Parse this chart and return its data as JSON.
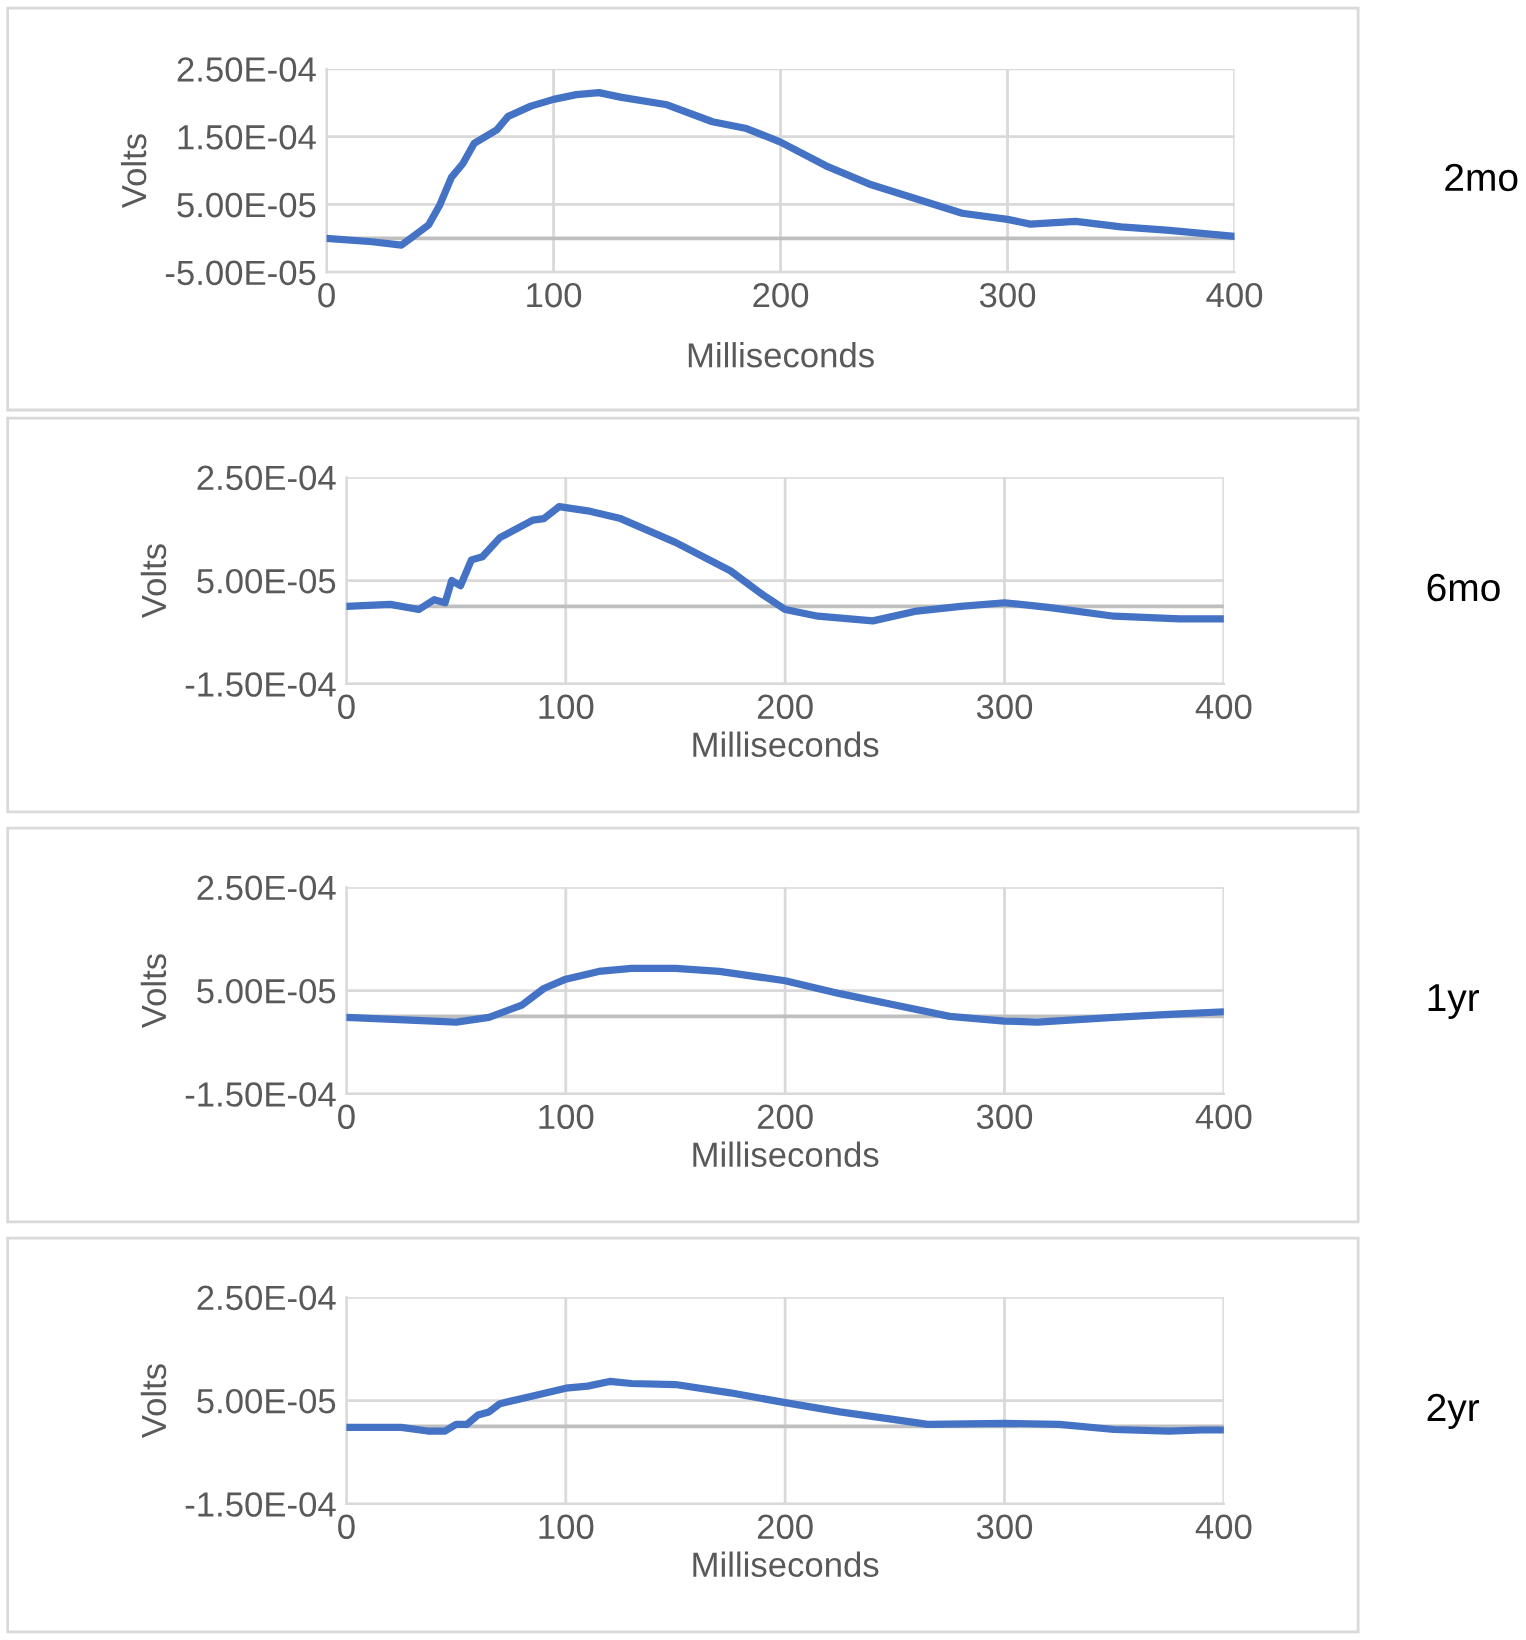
{
  "chart_data": [
    {
      "type": "line",
      "xlabel": "Milliseconds",
      "ylabel": "Volts",
      "annotations": [
        "2mo"
      ],
      "grid": true,
      "legend": false,
      "marker": "none",
      "line_style": "solid",
      "xlim": [
        0,
        400
      ],
      "xticks": [
        0,
        100,
        200,
        300,
        400
      ],
      "ylim": [
        -5e-05,
        0.00025
      ],
      "yticks": [
        {
          "value": -5e-05,
          "label": "-5.00E-05"
        },
        {
          "value": 5e-05,
          "label": "5.00E-05"
        },
        {
          "value": 0.00015,
          "label": "1.50E-04"
        },
        {
          "value": 0.00025,
          "label": "2.50E-04"
        }
      ],
      "ref_lines": [
        {
          "axis": "y",
          "value": 0,
          "color": "#bfbfbf"
        }
      ],
      "series": [
        {
          "color": "#4472c4",
          "x": [
            0,
            20,
            33,
            45,
            50,
            55,
            60,
            65,
            75,
            80,
            90,
            100,
            110,
            120,
            130,
            150,
            170,
            185,
            200,
            220,
            240,
            260,
            280,
            300,
            310,
            330,
            350,
            370,
            400
          ],
          "values": [
            0,
            -5e-06,
            -1e-05,
            2e-05,
            5e-05,
            9e-05,
            0.00011,
            0.00014,
            0.00016,
            0.00018,
            0.000195,
            0.000205,
            0.000212,
            0.000215,
            0.000208,
            0.000197,
            0.000172,
            0.000162,
            0.000142,
            0.000107,
            7.9e-05,
            5.8e-05,
            3.7e-05,
            2.8e-05,
            2.1e-05,
            2.5e-05,
            1.7e-05,
            1.2e-05,
            3e-06
          ]
        }
      ]
    },
    {
      "type": "line",
      "xlabel": "Milliseconds",
      "ylabel": "Volts",
      "annotations": [
        "6mo"
      ],
      "grid": true,
      "legend": false,
      "marker": "none",
      "line_style": "solid",
      "xlim": [
        0,
        400
      ],
      "xticks": [
        0,
        100,
        200,
        300,
        400
      ],
      "ylim": [
        -0.00015,
        0.00025
      ],
      "yticks": [
        {
          "value": -0.00015,
          "label": "-1.50E-04"
        },
        {
          "value": 5e-05,
          "label": "5.00E-05"
        },
        {
          "value": 0.00025,
          "label": "2.50E-04"
        }
      ],
      "ref_lines": [
        {
          "axis": "y",
          "value": 0,
          "color": "#bfbfbf"
        }
      ],
      "series": [
        {
          "color": "#4472c4",
          "x": [
            0,
            20,
            33,
            40,
            45,
            48,
            52,
            57,
            62,
            70,
            85,
            90,
            97,
            110,
            125,
            150,
            175,
            190,
            200,
            215,
            240,
            260,
            280,
            300,
            320,
            350,
            380,
            400
          ],
          "values": [
            0,
            4e-06,
            -6e-06,
            1.3e-05,
            7e-06,
            5e-05,
            4e-05,
            9e-05,
            9.6e-05,
            0.000133,
            0.000167,
            0.00017,
            0.000193,
            0.000185,
            0.00017,
            0.000124,
            6.9e-05,
            2.2e-05,
            -6e-06,
            -1.9e-05,
            -2.8e-05,
            -9e-06,
            0,
            7e-06,
            -2e-06,
            -1.9e-05,
            -2.4e-05,
            -2.4e-05
          ]
        }
      ]
    },
    {
      "type": "line",
      "xlabel": "Milliseconds",
      "ylabel": "Volts",
      "annotations": [
        "1yr"
      ],
      "grid": true,
      "legend": false,
      "marker": "none",
      "line_style": "solid",
      "xlim": [
        0,
        400
      ],
      "xticks": [
        0,
        100,
        200,
        300,
        400
      ],
      "ylim": [
        -0.00015,
        0.00025
      ],
      "yticks": [
        {
          "value": -0.00015,
          "label": "-1.50E-04"
        },
        {
          "value": 5e-05,
          "label": "5.00E-05"
        },
        {
          "value": 0.00025,
          "label": "2.50E-04"
        }
      ],
      "ref_lines": [
        {
          "axis": "y",
          "value": 0,
          "color": "#bfbfbf"
        }
      ],
      "series": [
        {
          "color": "#4472c4",
          "x": [
            0,
            50,
            65,
            80,
            90,
            100,
            115,
            130,
            150,
            170,
            200,
            225,
            250,
            275,
            300,
            315,
            350,
            375,
            400
          ],
          "values": [
            -2e-06,
            -1.1e-05,
            -2e-06,
            2.2e-05,
            5.4e-05,
            7.2e-05,
            8.7e-05,
            9.3e-05,
            9.3e-05,
            8.7e-05,
            6.9e-05,
            4.4e-05,
            2.2e-05,
            0,
            -9e-06,
            -1.1e-05,
            -2e-06,
            4e-06,
            9e-06
          ]
        }
      ]
    },
    {
      "type": "line",
      "xlabel": "Milliseconds",
      "ylabel": "Volts",
      "annotations": [
        "2yr"
      ],
      "grid": true,
      "legend": false,
      "marker": "none",
      "line_style": "solid",
      "xlim": [
        0,
        400
      ],
      "xticks": [
        0,
        100,
        200,
        300,
        400
      ],
      "ylim": [
        -0.00015,
        0.00025
      ],
      "yticks": [
        {
          "value": -0.00015,
          "label": "-1.50E-04"
        },
        {
          "value": 5e-05,
          "label": "5.00E-05"
        },
        {
          "value": 0.00025,
          "label": "2.50E-04"
        }
      ],
      "ref_lines": [
        {
          "axis": "y",
          "value": 0,
          "color": "#bfbfbf"
        }
      ],
      "series": [
        {
          "color": "#4472c4",
          "x": [
            0,
            25,
            37,
            45,
            50,
            55,
            60,
            65,
            70,
            85,
            100,
            110,
            120,
            130,
            150,
            175,
            200,
            225,
            250,
            265,
            300,
            325,
            350,
            375,
            390,
            400
          ],
          "values": [
            -2e-06,
            -2e-06,
            -9e-06,
            -9e-06,
            4e-06,
            4e-06,
            2.2e-05,
            2.8e-05,
            4.4e-05,
            5.9e-05,
            7.4e-05,
            7.8e-05,
            8.7e-05,
            8.3e-05,
            8.1e-05,
            6.5e-05,
            4.6e-05,
            2.8e-05,
            1.3e-05,
            4e-06,
            6e-06,
            4e-06,
            -6e-06,
            -9e-06,
            -7e-06,
            -7e-06
          ]
        }
      ]
    }
  ]
}
